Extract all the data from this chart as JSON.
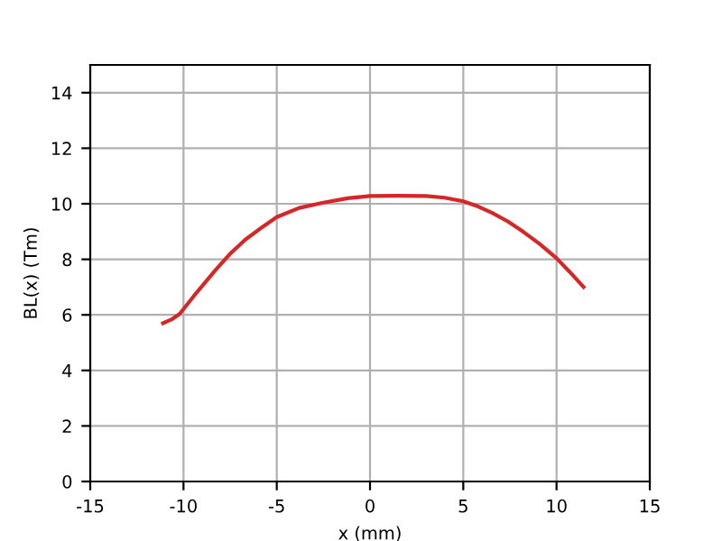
{
  "chart_data": {
    "type": "line",
    "xlabel": "x (mm)",
    "ylabel": "BL(x) (Tm)",
    "series": [
      {
        "color": "#d62728",
        "x": [
          -11.1,
          -10.6,
          -10.2,
          -9.3,
          -8.3,
          -7.5,
          -6.7,
          -5.8,
          -5,
          -3.8,
          -2.5,
          -1.2,
          0,
          1.5,
          3,
          4,
          5,
          5.8,
          6.55,
          7.4,
          8.2,
          9.1,
          10,
          10.7,
          11.45
        ],
        "values": [
          5.7,
          5.85,
          6.04,
          6.8,
          7.6,
          8.2,
          8.7,
          9.15,
          9.52,
          9.85,
          10.04,
          10.2,
          10.28,
          10.29,
          10.28,
          10.22,
          10.09,
          9.9,
          9.67,
          9.36,
          9.0,
          8.55,
          8.04,
          7.55,
          7.0
        ]
      }
    ],
    "xlim": [
      -15,
      15
    ],
    "ylim": [
      0,
      15
    ],
    "xticks": [
      -15,
      -10,
      -5,
      0,
      5,
      10,
      15
    ],
    "yticks": [
      0,
      2,
      4,
      6,
      8,
      10,
      12,
      14
    ],
    "grid": true,
    "line_style": "solid",
    "marker": "none"
  }
}
